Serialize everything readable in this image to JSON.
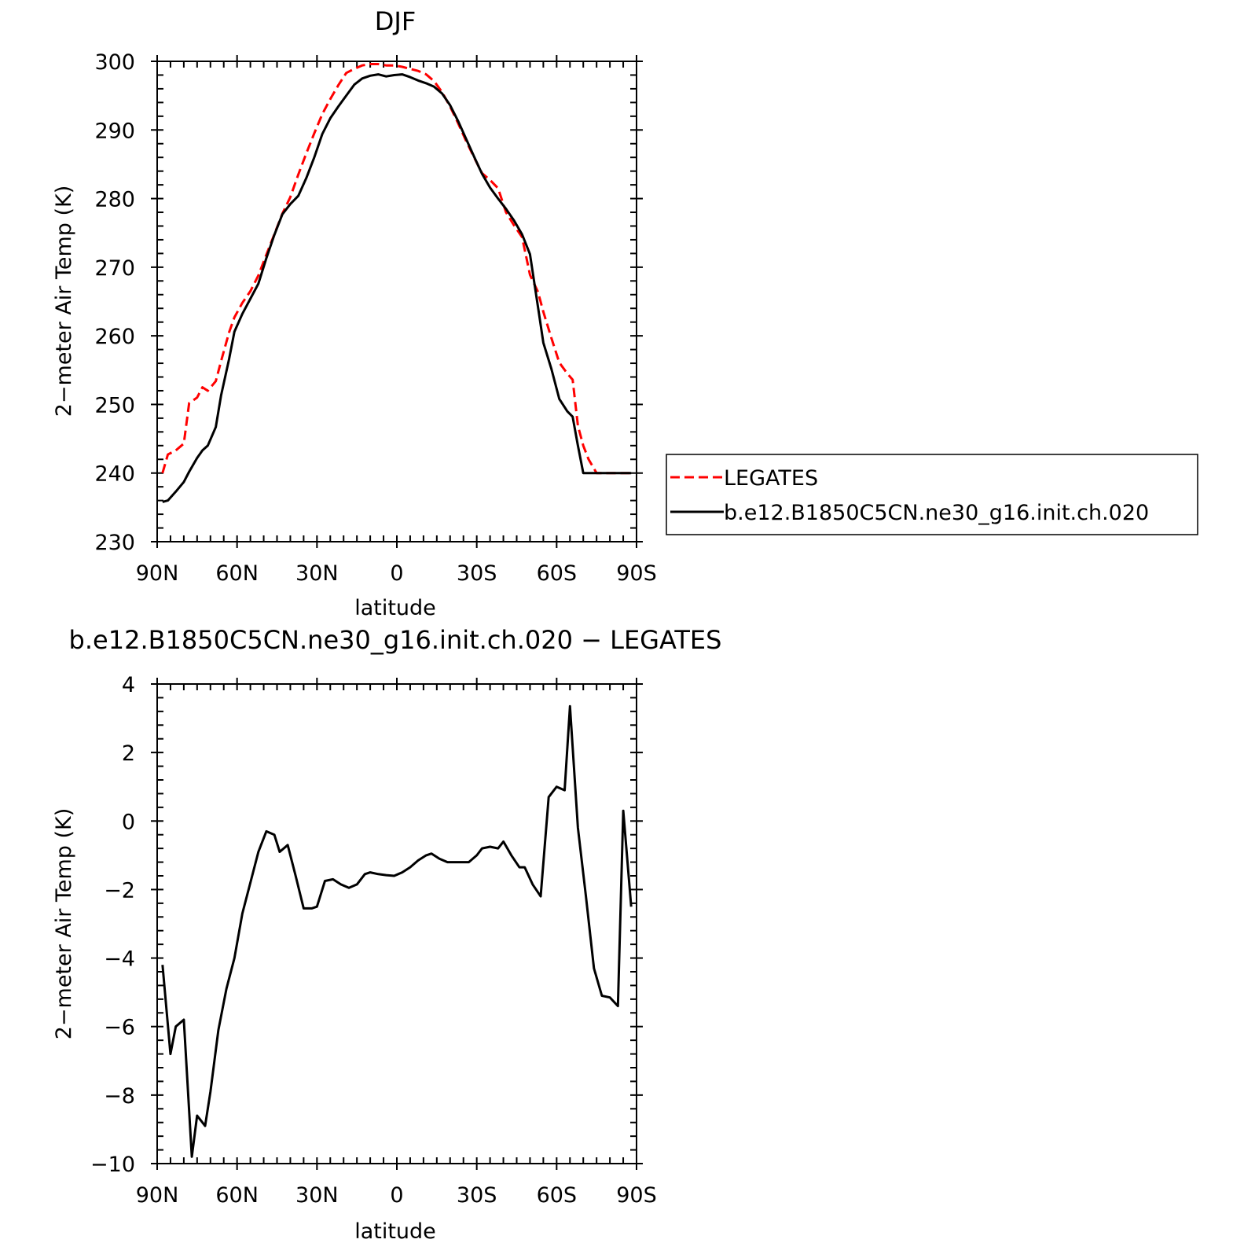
{
  "chart_data": [
    {
      "type": "line",
      "title": "DJF",
      "xlabel": "latitude",
      "ylabel": "2−meter Air Temp (K)",
      "x_ticks": [
        "90N",
        "60N",
        "30N",
        "0",
        "30S",
        "60S",
        "90S"
      ],
      "x_tick_values": [
        90,
        60,
        30,
        0,
        -30,
        -60,
        -90
      ],
      "xlim": [
        90,
        -90
      ],
      "ylim": [
        230,
        300
      ],
      "y_ticks": [
        "230",
        "240",
        "250",
        "260",
        "270",
        "280",
        "290",
        "300"
      ],
      "y_tick_values": [
        230,
        240,
        250,
        260,
        270,
        280,
        290,
        300
      ],
      "grid": false,
      "legend_position": "right",
      "series": [
        {
          "name": "LEGATES",
          "color": "#ff0000",
          "dash": "dashed",
          "x": [
            88,
            86,
            83,
            80,
            78,
            75,
            73,
            71,
            68,
            66,
            63,
            61,
            58,
            55,
            52,
            49,
            46,
            43,
            40,
            37,
            34,
            31,
            28,
            25,
            22,
            19,
            16,
            13,
            10,
            7,
            4,
            1,
            -2,
            -5,
            -8,
            -11,
            -14,
            -17,
            -20,
            -23,
            -26,
            -29,
            -32,
            -35,
            -38,
            -41,
            -44,
            -47,
            -50,
            -53,
            -55,
            -58,
            -61,
            -64,
            -66,
            -68,
            -70,
            -72,
            -75,
            -78,
            -80,
            -83,
            -86,
            -88
          ],
          "y": [
            240.0,
            242.7,
            243.3,
            244.3,
            250.2,
            251.0,
            252.5,
            252.0,
            253.4,
            256.3,
            260.5,
            262.7,
            264.8,
            266.5,
            268.8,
            271.8,
            274.8,
            277.8,
            280.2,
            283.5,
            286.6,
            289.5,
            292.3,
            294.5,
            296.5,
            298.3,
            298.9,
            299.4,
            299.6,
            299.6,
            299.4,
            299.4,
            299.2,
            298.9,
            298.6,
            298.1,
            297.1,
            295.5,
            293.4,
            291.0,
            288.4,
            286.0,
            283.7,
            282.7,
            281.5,
            278.0,
            276.1,
            274.4,
            268.9,
            266.4,
            263.5,
            259.7,
            256.1,
            254.5,
            253.6,
            246.9,
            244.0,
            242.0,
            240.0,
            240.0,
            240.0,
            240.0,
            240.0,
            240.0
          ]
        },
        {
          "name": "b.e12.B1850C5CN.ne30_g16.init.ch.020",
          "color": "#000000",
          "dash": "solid",
          "x": [
            88,
            86,
            83,
            80,
            78,
            75,
            73,
            71,
            68,
            66,
            63,
            61,
            58,
            55,
            52,
            49,
            46,
            43,
            40,
            37,
            34,
            31,
            28,
            25,
            22,
            19,
            16,
            13,
            10,
            7,
            4,
            1,
            -2,
            -5,
            -8,
            -11,
            -14,
            -17,
            -20,
            -23,
            -26,
            -29,
            -32,
            -35,
            -38,
            -41,
            -44,
            -47,
            -50,
            -53,
            -55,
            -58,
            -61,
            -64,
            -66,
            -68,
            -70,
            -72,
            -75,
            -78,
            -80,
            -83,
            -86,
            -88
          ],
          "y": [
            235.8,
            236.0,
            237.3,
            238.7,
            240.2,
            242.2,
            243.3,
            244.0,
            246.7,
            251.3,
            256.6,
            260.6,
            263.2,
            265.4,
            267.6,
            271.3,
            274.7,
            277.7,
            279.2,
            280.4,
            283.0,
            286.0,
            289.4,
            291.7,
            293.4,
            295.0,
            296.6,
            297.5,
            297.9,
            298.1,
            297.8,
            298.0,
            298.1,
            297.7,
            297.2,
            296.8,
            296.3,
            295.3,
            293.6,
            291.3,
            288.7,
            286.1,
            283.6,
            281.6,
            280.0,
            278.5,
            276.8,
            274.8,
            271.9,
            264.2,
            259.0,
            255.2,
            250.8,
            249.0,
            248.2,
            244.0,
            240.0,
            240.0,
            240.0,
            240.0,
            240.0,
            240.0,
            240.0,
            240.0
          ]
        }
      ]
    },
    {
      "type": "line",
      "title": "b.e12.B1850C5CN.ne30_g16.init.ch.020 − LEGATES",
      "xlabel": "latitude",
      "ylabel": "2−meter Air Temp (K)",
      "x_ticks": [
        "90N",
        "60N",
        "30N",
        "0",
        "30S",
        "60S",
        "90S"
      ],
      "x_tick_values": [
        90,
        60,
        30,
        0,
        -30,
        -60,
        -90
      ],
      "xlim": [
        90,
        -90
      ],
      "ylim": [
        -10,
        4
      ],
      "y_ticks": [
        "4",
        "2",
        "0",
        "−2",
        "−4",
        "−6",
        "−8",
        "−10"
      ],
      "y_tick_values": [
        4,
        2,
        0,
        -2,
        -4,
        -6,
        -8,
        -10
      ],
      "grid": false,
      "series": [
        {
          "name": "",
          "color": "#000000",
          "dash": "solid",
          "x": [
            88,
            85,
            83,
            80,
            77,
            75,
            72,
            70,
            67,
            64,
            61,
            58,
            55,
            52,
            49,
            46,
            44,
            41,
            38,
            35,
            32,
            30,
            27,
            24,
            21,
            18,
            15,
            12,
            10,
            7,
            4,
            1,
            -2,
            -5,
            -8,
            -11,
            -13,
            -16,
            -19,
            -21,
            -24,
            -27,
            -30,
            -32,
            -35,
            -38,
            -40,
            -43,
            -46,
            -48,
            -51,
            -54,
            -57,
            -60,
            -63,
            -65,
            -68,
            -71,
            -74,
            -77,
            -80,
            -83,
            -85,
            -88
          ],
          "y": [
            -4.2,
            -6.8,
            -6.0,
            -5.8,
            -9.8,
            -8.6,
            -8.9,
            -7.9,
            -6.1,
            -4.9,
            -4.0,
            -2.7,
            -1.8,
            -0.9,
            -0.3,
            -0.4,
            -0.9,
            -0.7,
            -1.6,
            -2.55,
            -2.55,
            -2.5,
            -1.75,
            -1.7,
            -1.85,
            -1.95,
            -1.85,
            -1.55,
            -1.5,
            -1.55,
            -1.58,
            -1.6,
            -1.5,
            -1.35,
            -1.15,
            -1.0,
            -0.95,
            -1.1,
            -1.2,
            -1.2,
            -1.2,
            -1.2,
            -1.0,
            -0.8,
            -0.75,
            -0.8,
            -0.6,
            -1.0,
            -1.35,
            -1.35,
            -1.85,
            -2.2,
            0.7,
            1.0,
            0.9,
            3.35,
            -0.2,
            -2.2,
            -4.3,
            -5.1,
            -5.15,
            -5.4,
            0.3,
            -2.5
          ]
        }
      ]
    }
  ],
  "legend": {
    "items": [
      {
        "label": "LEGATES",
        "color": "#ff0000",
        "dash": "dashed"
      },
      {
        "label": "b.e12.B1850C5CN.ne30_g16.init.ch.020",
        "color": "#000000",
        "dash": "solid"
      }
    ]
  }
}
